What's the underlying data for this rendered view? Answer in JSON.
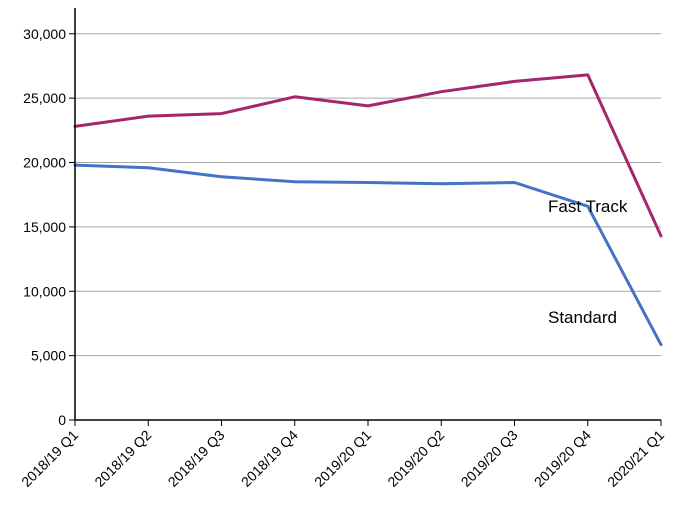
{
  "chart_data": {
    "type": "line",
    "title": "",
    "xlabel": "",
    "ylabel": "",
    "categories": [
      "2018/19 Q1",
      "2018/19 Q2",
      "2018/19 Q3",
      "2018/19 Q4",
      "2019/20 Q1",
      "2019/20 Q2",
      "2019/20 Q3",
      "2019/20 Q4",
      "2020/21 Q1"
    ],
    "ylim": [
      0,
      32000
    ],
    "yticks": [
      0,
      5000,
      10000,
      15000,
      20000,
      25000,
      30000
    ],
    "ytick_labels": [
      "0",
      "5,000",
      "10,000",
      "15,000",
      "20,000",
      "25,000",
      "30,000"
    ],
    "grid": true,
    "series": [
      {
        "name": "Fast Track",
        "color": "#a5266d",
        "values": [
          22800,
          23600,
          23800,
          25100,
          24400,
          25500,
          26300,
          26800,
          14300
        ]
      },
      {
        "name": "Standard",
        "color": "#4472c4",
        "values": [
          19800,
          19600,
          18900,
          18500,
          18450,
          18350,
          18450,
          16600,
          5850
        ]
      }
    ]
  }
}
